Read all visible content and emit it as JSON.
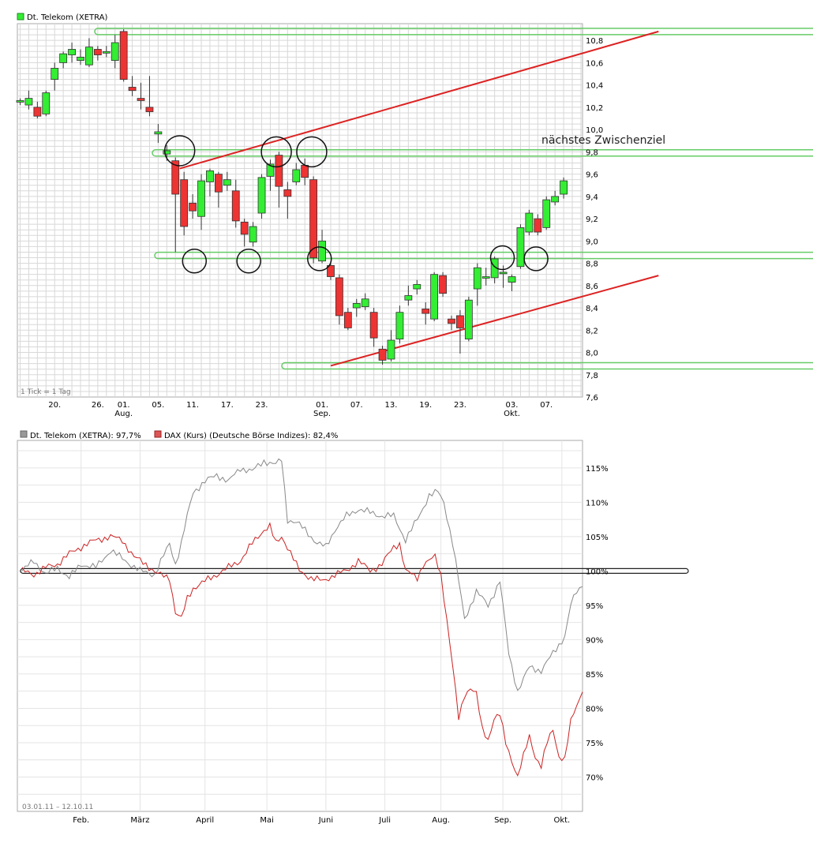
{
  "colors": {
    "up": "#33ee33",
    "down": "#ee3333",
    "grid": "#d8d8d8",
    "trend": "#dd2222",
    "support": "#66cc66",
    "perf_a": "#888888",
    "perf_b": "#cc2222"
  },
  "chart_data": [
    {
      "type": "candlestick",
      "title": "Dt. Telekom (XETRA)",
      "note": "1 Tick = 1 Tag",
      "annotation": "nächstes Zwischenziel",
      "ylim": [
        7.6,
        10.95
      ],
      "y_ticks": [
        "10,8",
        "10,6",
        "10,4",
        "10,2",
        "10,0",
        "9,8",
        "9,6",
        "9,4",
        "9,2",
        "9,0",
        "8,8",
        "8,6",
        "8,4",
        "8,2",
        "8,0",
        "7,8",
        "7,6"
      ],
      "x_ticks": [
        {
          "i": 4,
          "label": "20."
        },
        {
          "i": 9,
          "label": "26."
        },
        {
          "i": 12,
          "label": "01.",
          "sub": "Aug."
        },
        {
          "i": 16,
          "label": "05."
        },
        {
          "i": 20,
          "label": "11."
        },
        {
          "i": 24,
          "label": "17."
        },
        {
          "i": 28,
          "label": "23."
        },
        {
          "i": 35,
          "label": "01.",
          "sub": "Sep."
        },
        {
          "i": 39,
          "label": "07."
        },
        {
          "i": 43,
          "label": "13."
        },
        {
          "i": 47,
          "label": "19."
        },
        {
          "i": 51,
          "label": "23."
        },
        {
          "i": 57,
          "label": "03.",
          "sub": "Okt."
        },
        {
          "i": 61,
          "label": "07."
        }
      ],
      "candles": [
        [
          10.25,
          10.26,
          10.28,
          10.22
        ],
        [
          10.22,
          10.28,
          10.35,
          10.18
        ],
        [
          10.2,
          10.12,
          10.25,
          10.1
        ],
        [
          10.14,
          10.33,
          10.35,
          10.12
        ],
        [
          10.45,
          10.55,
          10.6,
          10.35
        ],
        [
          10.6,
          10.68,
          10.7,
          10.55
        ],
        [
          10.67,
          10.72,
          10.78,
          10.6
        ],
        [
          10.62,
          10.65,
          10.72,
          10.58
        ],
        [
          10.58,
          10.74,
          10.82,
          10.56
        ],
        [
          10.72,
          10.67,
          10.75,
          10.62
        ],
        [
          10.69,
          10.7,
          10.75,
          10.65
        ],
        [
          10.62,
          10.78,
          10.85,
          10.55
        ],
        [
          10.88,
          10.45,
          10.9,
          10.43
        ],
        [
          10.38,
          10.35,
          10.48,
          10.3
        ],
        [
          10.28,
          10.26,
          10.42,
          10.18
        ],
        [
          10.2,
          10.16,
          10.48,
          10.12
        ],
        [
          9.96,
          9.98,
          10.05,
          9.88
        ],
        [
          9.78,
          9.81,
          9.86,
          9.72
        ],
        [
          9.72,
          9.42,
          9.75,
          8.9
        ],
        [
          9.55,
          9.13,
          9.62,
          9.05
        ],
        [
          9.34,
          9.27,
          9.42,
          9.2
        ],
        [
          9.22,
          9.54,
          9.6,
          9.1
        ],
        [
          9.53,
          9.63,
          9.65,
          9.4
        ],
        [
          9.6,
          9.44,
          9.62,
          9.3
        ],
        [
          9.5,
          9.55,
          9.62,
          9.45
        ],
        [
          9.45,
          9.18,
          9.55,
          9.12
        ],
        [
          9.17,
          9.06,
          9.2,
          8.95
        ],
        [
          8.99,
          9.13,
          9.17,
          8.95
        ],
        [
          9.25,
          9.57,
          9.6,
          9.2
        ],
        [
          9.58,
          9.69,
          9.73,
          9.45
        ],
        [
          9.77,
          9.49,
          9.8,
          9.3
        ],
        [
          9.46,
          9.4,
          9.53,
          9.2
        ],
        [
          9.53,
          9.64,
          9.7,
          9.5
        ],
        [
          9.68,
          9.57,
          9.74,
          9.5
        ],
        [
          9.55,
          8.85,
          9.58,
          8.8
        ],
        [
          8.82,
          9.0,
          9.1,
          8.8
        ],
        [
          8.78,
          8.68,
          8.82,
          8.65
        ],
        [
          8.67,
          8.33,
          8.7,
          8.25
        ],
        [
          8.36,
          8.22,
          8.4,
          8.2
        ],
        [
          8.4,
          8.44,
          8.48,
          8.32
        ],
        [
          8.41,
          8.48,
          8.53,
          8.38
        ],
        [
          8.36,
          8.13,
          8.4,
          8.05
        ],
        [
          8.03,
          7.93,
          8.06,
          7.89
        ],
        [
          7.94,
          8.11,
          8.2,
          7.92
        ],
        [
          8.12,
          8.36,
          8.42,
          8.08
        ],
        [
          8.47,
          8.51,
          8.6,
          8.42
        ],
        [
          8.57,
          8.61,
          8.65,
          8.52
        ],
        [
          8.39,
          8.35,
          8.45,
          8.25
        ],
        [
          8.3,
          8.7,
          8.72,
          8.28
        ],
        [
          8.69,
          8.53,
          8.72,
          8.5
        ],
        [
          8.3,
          8.26,
          8.33,
          8.2
        ],
        [
          8.33,
          8.22,
          8.38,
          7.99
        ],
        [
          8.12,
          8.47,
          8.5,
          8.1
        ],
        [
          8.57,
          8.76,
          8.8,
          8.42
        ],
        [
          8.68,
          8.68,
          8.76,
          8.6
        ],
        [
          8.67,
          8.84,
          8.86,
          8.62
        ],
        [
          8.72,
          8.72,
          8.78,
          8.58
        ],
        [
          8.63,
          8.68,
          8.7,
          8.55
        ],
        [
          8.77,
          9.12,
          9.15,
          8.75
        ],
        [
          9.08,
          9.25,
          9.28,
          9.05
        ],
        [
          9.2,
          9.08,
          9.24,
          9.05
        ],
        [
          9.12,
          9.37,
          9.4,
          9.1
        ],
        [
          9.35,
          9.4,
          9.45,
          9.32
        ],
        [
          9.42,
          9.54,
          9.57,
          9.38
        ]
      ],
      "support_levels": [
        10.88,
        9.79,
        8.87,
        7.88
      ],
      "trendlines": [
        {
          "x1": 18.5,
          "y1": 9.65,
          "x2": 74,
          "y2": 10.88
        },
        {
          "x1": 36,
          "y1": 7.88,
          "x2": 74,
          "y2": 8.69
        }
      ],
      "circles": [
        [
          18.5,
          9.81,
          "big"
        ],
        [
          20.2,
          8.82,
          "small"
        ],
        [
          26.5,
          8.82,
          "small"
        ],
        [
          29.7,
          9.8,
          "big"
        ],
        [
          33.8,
          9.8,
          "big"
        ],
        [
          34.7,
          8.84,
          "small"
        ],
        [
          55.9,
          8.85,
          "small"
        ],
        [
          59.8,
          8.84,
          "small"
        ]
      ]
    },
    {
      "type": "line",
      "date_range": "03.01.11 – 12.10.11",
      "ylim": [
        65,
        119
      ],
      "y_ticks": [
        {
          "v": 115,
          "label": "115%"
        },
        {
          "v": 110,
          "label": "110%"
        },
        {
          "v": 105,
          "label": "105%"
        },
        {
          "v": 100,
          "label": "100%"
        },
        {
          "v": 95,
          "label": "95%"
        },
        {
          "v": 90,
          "label": "90%"
        },
        {
          "v": 85,
          "label": "85%"
        },
        {
          "v": 80,
          "label": "80%"
        },
        {
          "v": 75,
          "label": "75%"
        },
        {
          "v": 70,
          "label": "70%"
        }
      ],
      "x_ticks": [
        {
          "i": 20,
          "label": "Feb."
        },
        {
          "i": 40,
          "label": "März"
        },
        {
          "i": 62,
          "label": "April"
        },
        {
          "i": 83,
          "label": "Mai"
        },
        {
          "i": 103,
          "label": "Juni"
        },
        {
          "i": 123,
          "label": "Juli"
        },
        {
          "i": 142,
          "label": "Aug."
        },
        {
          "i": 163,
          "label": "Sep."
        },
        {
          "i": 183,
          "label": "Okt."
        }
      ],
      "n_points": 190,
      "series": [
        {
          "name": "Dt. Telekom (XETRA): 97,7%",
          "color": "#888888",
          "anchors": [
            [
              0,
              100
            ],
            [
              4,
              101.5
            ],
            [
              8,
              99.5
            ],
            [
              12,
              100.5
            ],
            [
              16,
              99
            ],
            [
              20,
              101
            ],
            [
              25,
              100.5
            ],
            [
              30,
              103
            ],
            [
              35,
              101.5
            ],
            [
              40,
              100
            ],
            [
              45,
              99.5
            ],
            [
              50,
              104
            ],
            [
              52,
              101
            ],
            [
              54,
              104
            ],
            [
              56,
              108
            ],
            [
              58,
              111.5
            ],
            [
              62,
              113
            ],
            [
              66,
              114
            ],
            [
              70,
              113
            ],
            [
              74,
              115
            ],
            [
              78,
              114.5
            ],
            [
              82,
              116
            ],
            [
              86,
              115.5
            ],
            [
              88,
              116.2
            ],
            [
              90,
              107.5
            ],
            [
              93,
              107
            ],
            [
              96,
              106
            ],
            [
              98,
              105
            ],
            [
              100,
              104
            ],
            [
              103,
              103.5
            ],
            [
              106,
              106
            ],
            [
              110,
              108
            ],
            [
              114,
              109
            ],
            [
              118,
              108.5
            ],
            [
              122,
              108
            ],
            [
              126,
              108
            ],
            [
              130,
              104.5
            ],
            [
              134,
              107.5
            ],
            [
              138,
              111
            ],
            [
              141,
              111.5
            ],
            [
              143,
              110
            ],
            [
              146,
              104
            ],
            [
              150,
              93
            ],
            [
              154,
              97
            ],
            [
              158,
              95
            ],
            [
              162,
              98.5
            ],
            [
              165,
              88
            ],
            [
              168,
              82.5
            ],
            [
              172,
              86
            ],
            [
              176,
              85.5
            ],
            [
              180,
              88
            ],
            [
              184,
              90.5
            ],
            [
              186,
              95
            ],
            [
              188,
              97
            ],
            [
              190,
              97.7
            ]
          ]
        },
        {
          "name": "DAX (Kurs) (Deutsche Börse Indizes): 82,4%",
          "color": "#cc2222",
          "anchors": [
            [
              0,
              100
            ],
            [
              4,
              99.5
            ],
            [
              8,
              100.5
            ],
            [
              12,
              101
            ],
            [
              16,
              102.5
            ],
            [
              20,
              103.5
            ],
            [
              25,
              104.5
            ],
            [
              30,
              105
            ],
            [
              34,
              104.5
            ],
            [
              38,
              102
            ],
            [
              42,
              101
            ],
            [
              46,
              99.5
            ],
            [
              50,
              99
            ],
            [
              52,
              94
            ],
            [
              54,
              93
            ],
            [
              56,
              96
            ],
            [
              58,
              97.5
            ],
            [
              62,
              98.5
            ],
            [
              66,
              99.5
            ],
            [
              70,
              100.5
            ],
            [
              74,
              101.5
            ],
            [
              78,
              104
            ],
            [
              82,
              106
            ],
            [
              84,
              106.5
            ],
            [
              86,
              104
            ],
            [
              88,
              105
            ],
            [
              90,
              103.5
            ],
            [
              94,
              100
            ],
            [
              98,
              99
            ],
            [
              102,
              98.5
            ],
            [
              106,
              99.5
            ],
            [
              110,
              100
            ],
            [
              114,
              101.5
            ],
            [
              118,
              100
            ],
            [
              122,
              101
            ],
            [
              126,
              103.5
            ],
            [
              128,
              104
            ],
            [
              130,
              100
            ],
            [
              134,
              99
            ],
            [
              136,
              101
            ],
            [
              138,
              101.5
            ],
            [
              140,
              102
            ],
            [
              142,
              99.5
            ],
            [
              144,
              93
            ],
            [
              146,
              86
            ],
            [
              148,
              78.5
            ],
            [
              150,
              82
            ],
            [
              152,
              83
            ],
            [
              154,
              82
            ],
            [
              156,
              77
            ],
            [
              158,
              75.5
            ],
            [
              160,
              78.5
            ],
            [
              162,
              79
            ],
            [
              164,
              75
            ],
            [
              166,
              72.5
            ],
            [
              168,
              70
            ],
            [
              170,
              73
            ],
            [
              172,
              76
            ],
            [
              174,
              73
            ],
            [
              176,
              71.5
            ],
            [
              178,
              75
            ],
            [
              180,
              77
            ],
            [
              182,
              73
            ],
            [
              184,
              72.5
            ],
            [
              186,
              78
            ],
            [
              188,
              80.5
            ],
            [
              190,
              82.4
            ]
          ]
        }
      ]
    }
  ]
}
